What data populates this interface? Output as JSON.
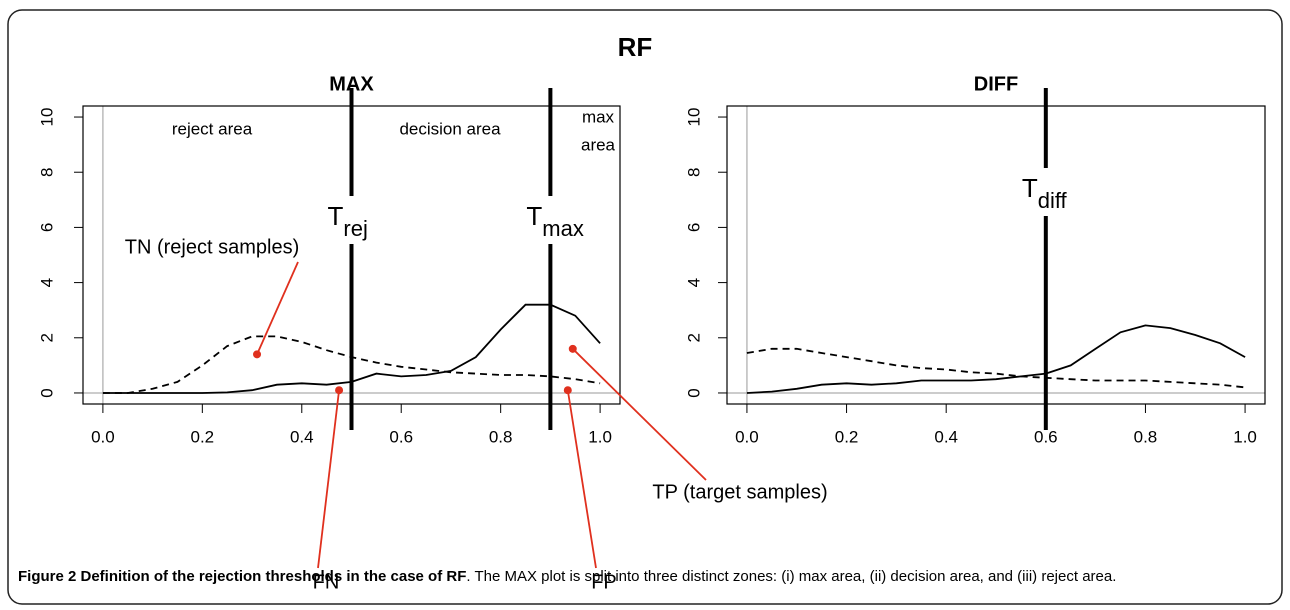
{
  "suptitle": "RF",
  "chart_data": [
    {
      "type": "line",
      "title": "MAX",
      "x": [
        0,
        0.05,
        0.1,
        0.15,
        0.2,
        0.25,
        0.3,
        0.35,
        0.4,
        0.45,
        0.5,
        0.55,
        0.6,
        0.65,
        0.7,
        0.75,
        0.8,
        0.85,
        0.9,
        0.95,
        1.0
      ],
      "series": [
        {
          "color": "#000000",
          "dash": "solid",
          "values": [
            0,
            0,
            0,
            0,
            0,
            0.02,
            0.1,
            0.3,
            0.35,
            0.3,
            0.4,
            0.7,
            0.6,
            0.65,
            0.8,
            1.3,
            2.3,
            3.2,
            3.2,
            2.8,
            1.8
          ]
        },
        {
          "color": "#000000",
          "dash": "dashed",
          "values": [
            0,
            0,
            0.15,
            0.4,
            1.0,
            1.7,
            2.05,
            2.05,
            1.85,
            1.55,
            1.3,
            1.1,
            0.95,
            0.85,
            0.75,
            0.7,
            0.65,
            0.65,
            0.6,
            0.5,
            0.35
          ]
        }
      ],
      "xlim": [
        -0.04,
        1.04
      ],
      "ylim": [
        -0.4,
        10.4
      ],
      "xticks": [
        {
          "value": 0,
          "label": "0.0"
        },
        {
          "value": 0.2,
          "label": "0.2"
        },
        {
          "value": 0.4,
          "label": "0.4"
        },
        {
          "value": 0.6,
          "label": "0.6"
        },
        {
          "value": 0.8,
          "label": "0.8"
        },
        {
          "value": 1,
          "label": "1.0"
        }
      ],
      "yticks": [
        0,
        2,
        4,
        6,
        8,
        10
      ],
      "thresholds": [
        {
          "value": 0.5,
          "label": "T",
          "sub": "rej"
        },
        {
          "value": 0.9,
          "label": "T",
          "sub": "max"
        }
      ],
      "region_labels": [
        "reject area",
        "decision area",
        "max",
        "area"
      ]
    },
    {
      "type": "line",
      "title": "DIFF",
      "x": [
        0,
        0.05,
        0.1,
        0.15,
        0.2,
        0.25,
        0.3,
        0.35,
        0.4,
        0.45,
        0.5,
        0.55,
        0.6,
        0.65,
        0.7,
        0.75,
        0.8,
        0.85,
        0.9,
        0.95,
        1.0
      ],
      "series": [
        {
          "color": "#000000",
          "dash": "solid",
          "values": [
            0,
            0.05,
            0.15,
            0.3,
            0.35,
            0.3,
            0.35,
            0.45,
            0.45,
            0.45,
            0.5,
            0.6,
            0.7,
            1.0,
            1.6,
            2.2,
            2.45,
            2.35,
            2.1,
            1.8,
            1.3
          ]
        },
        {
          "color": "#000000",
          "dash": "dashed",
          "values": [
            1.45,
            1.6,
            1.6,
            1.45,
            1.3,
            1.15,
            1.0,
            0.9,
            0.85,
            0.75,
            0.7,
            0.6,
            0.55,
            0.5,
            0.45,
            0.45,
            0.45,
            0.4,
            0.35,
            0.3,
            0.2
          ]
        }
      ],
      "xlim": [
        -0.04,
        1.04
      ],
      "ylim": [
        -0.4,
        10.4
      ],
      "xticks": [
        {
          "value": 0,
          "label": "0.0"
        },
        {
          "value": 0.2,
          "label": "0.2"
        },
        {
          "value": 0.4,
          "label": "0.4"
        },
        {
          "value": 0.6,
          "label": "0.6"
        },
        {
          "value": 0.8,
          "label": "0.8"
        },
        {
          "value": 1,
          "label": "1.0"
        }
      ],
      "yticks": [
        0,
        2,
        4,
        6,
        8,
        10
      ],
      "thresholds": [
        {
          "value": 0.6,
          "label": "T",
          "sub": "diff"
        }
      ]
    }
  ],
  "annotations": {
    "color": "#e0301e",
    "texts": [
      "TN (reject samples)",
      "FN",
      "FP",
      "TP (target samples)"
    ]
  },
  "caption": {
    "bold": "Figure 2 Definition of the rejection thresholds in the case of RF",
    "text": ". The MAX plot is split into three distinct zones: (i) max area, (ii) decision area, and (iii) reject area."
  }
}
